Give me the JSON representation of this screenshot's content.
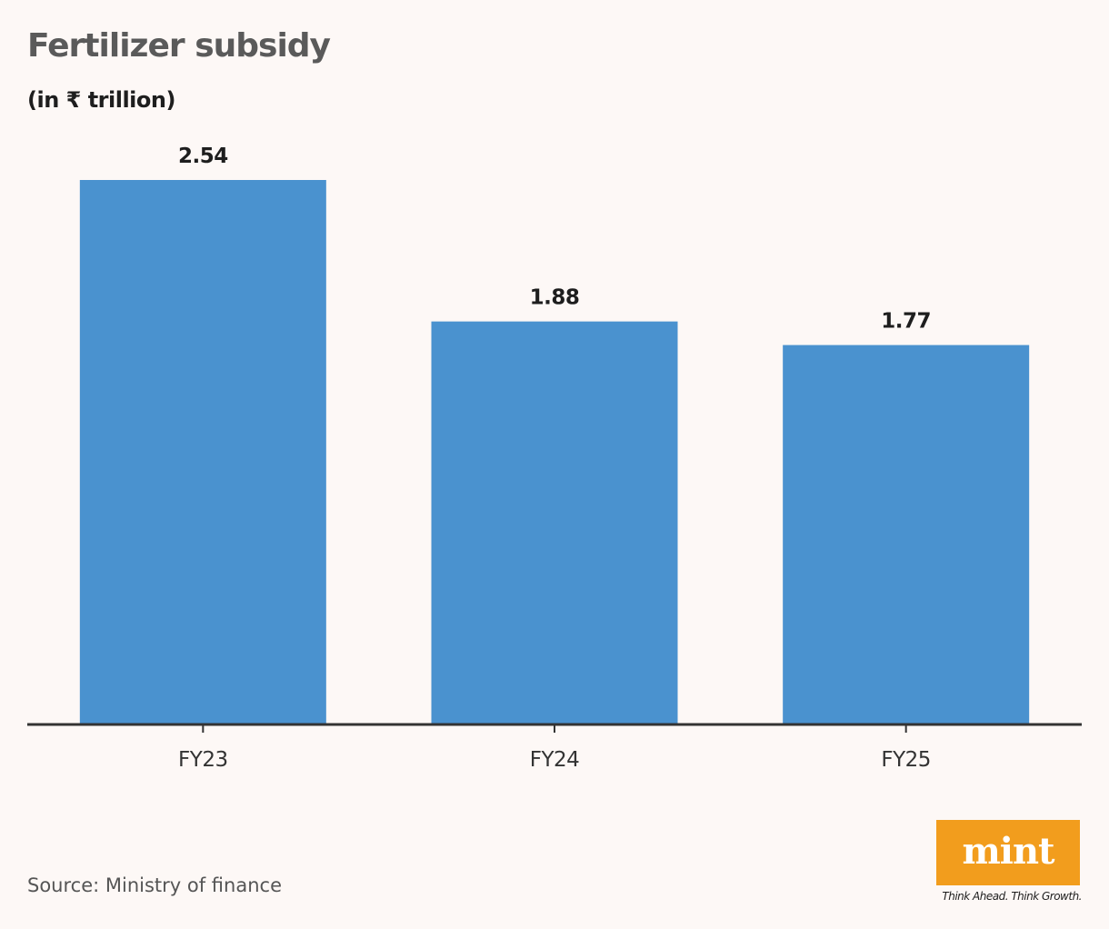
{
  "header": {
    "title": "Fertilizer subsidy",
    "subtitle": "(in ₹ trillion)"
  },
  "footer": {
    "source": "Source: Ministry of finance"
  },
  "branding": {
    "logo_text": "mint",
    "tagline": "Think Ahead. Think Growth.",
    "logo_color": "#f29d1d"
  },
  "colors": {
    "bar": "#4a92cf",
    "axis": "#333333",
    "background": "#fdf8f6"
  },
  "chart_data": {
    "type": "bar",
    "title": "Fertilizer subsidy",
    "subtitle": "(in ₹ trillion)",
    "categories": [
      "FY23",
      "FY24",
      "FY25"
    ],
    "values": [
      2.54,
      1.88,
      1.77
    ],
    "data_labels": [
      "2.54",
      "1.88",
      "1.77"
    ],
    "xlabel": "",
    "ylabel": "",
    "ylim": [
      0,
      2.54
    ],
    "grid": false,
    "legend": "none"
  }
}
